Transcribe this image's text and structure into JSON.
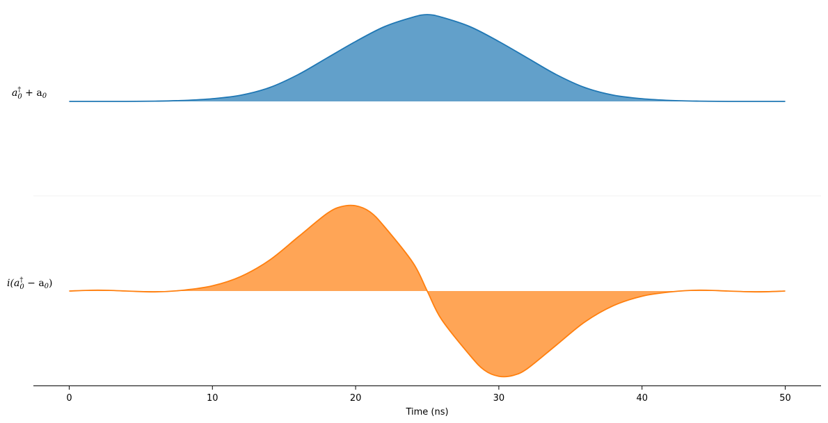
{
  "chart_data": {
    "type": "area",
    "xlabel": "Time (ns)",
    "xlim": [
      -2.5,
      52.5
    ],
    "xticks": [
      0,
      10,
      20,
      30,
      40,
      50
    ],
    "grid": false,
    "panels": [
      {
        "name": "top",
        "label_main": "a",
        "label_sup": "†",
        "label_sub": "0",
        "label_rest": " + a",
        "label_rest_sub": "0",
        "color": "#1f77b4",
        "fill_color": "#1f77b4",
        "ylim": [
          0,
          1
        ],
        "x": [
          0,
          2,
          4,
          6,
          8,
          10,
          12,
          14,
          16,
          18,
          20,
          22,
          24,
          25,
          26,
          28,
          30,
          32,
          34,
          36,
          38,
          40,
          42,
          44,
          46,
          48,
          50
        ],
        "y": [
          0.0,
          0.0,
          0.0,
          0.003,
          0.011,
          0.031,
          0.072,
          0.16,
          0.31,
          0.5,
          0.69,
          0.86,
          0.97,
          1.0,
          0.97,
          0.86,
          0.69,
          0.5,
          0.31,
          0.16,
          0.072,
          0.031,
          0.011,
          0.003,
          0.0,
          0.0,
          0.0
        ]
      },
      {
        "name": "bottom",
        "label_pre": "i(",
        "label_main": "a",
        "label_sup": "†",
        "label_sub": "0",
        "label_rest": " − a",
        "label_rest_sub": "0",
        "label_close": ")",
        "color": "#ff7f0e",
        "fill_color": "#ff7f0e",
        "ylim": [
          -1,
          1
        ],
        "x": [
          0,
          2,
          4,
          6,
          8,
          10,
          12,
          14,
          16,
          18,
          19,
          20,
          21,
          22,
          24,
          25,
          26,
          28,
          29,
          30,
          31,
          32,
          34,
          36,
          38,
          40,
          42,
          44,
          46,
          48,
          50
        ],
        "y": [
          0.0,
          0.01,
          0.0,
          -0.01,
          0.01,
          0.06,
          0.17,
          0.36,
          0.63,
          0.9,
          0.98,
          0.99,
          0.92,
          0.75,
          0.33,
          0.0,
          -0.33,
          -0.75,
          -0.92,
          -0.99,
          -0.98,
          -0.9,
          -0.63,
          -0.36,
          -0.17,
          -0.06,
          -0.01,
          0.01,
          0.0,
          -0.01,
          0.0
        ]
      }
    ]
  }
}
